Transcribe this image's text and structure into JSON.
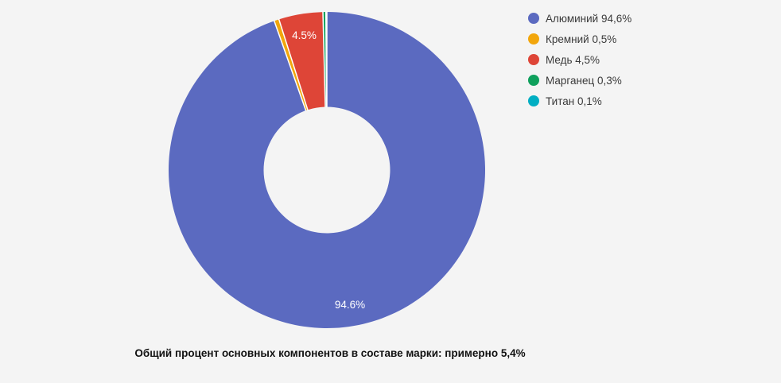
{
  "background_color": "#F4F4F4",
  "caption": "Общий процент основных компонентов в составе марки: примерно 5,4%",
  "chart_data": {
    "type": "pie",
    "subtype": "donut",
    "title": "",
    "categories": [
      "Алюминий",
      "Кремний",
      "Медь",
      "Марганец",
      "Титан"
    ],
    "values": [
      94.6,
      0.5,
      4.5,
      0.3,
      0.1
    ],
    "unit": "%",
    "colors": [
      "#5B6AC0",
      "#F2A60C",
      "#DE4537",
      "#0FA05C",
      "#00AEC2"
    ],
    "slugs": [
      "aluminium",
      "silicon",
      "copper",
      "manganese",
      "titanium"
    ],
    "legend_labels": [
      "Алюминий 94,6%",
      "Кремний 0,5%",
      "Медь 4,5%",
      "Марганец 0,3%",
      "Титан 0,1%"
    ],
    "slice_labels": [
      "94.6%",
      null,
      "4.5%",
      null,
      null
    ],
    "legend_position": "right",
    "start_angle_deg": 0,
    "direction": "clockwise",
    "inner_radius_ratio": 0.4,
    "slice_border_color": "#FFFFFF",
    "slice_label_color": "#FFFFFF",
    "legend_text_color": "#3A3A3A",
    "caption_color": "#111111"
  }
}
